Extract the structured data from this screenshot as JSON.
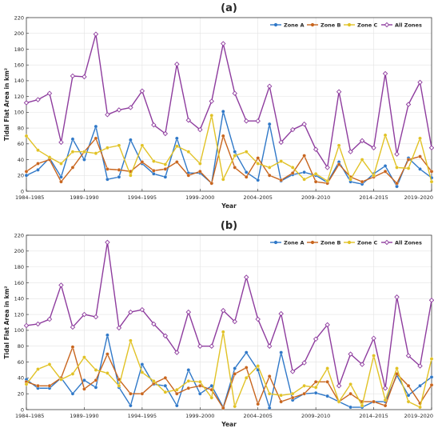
{
  "figure": {
    "colors": {
      "zone_a": "#2F78C8",
      "zone_b": "#C8651E",
      "zone_c": "#E1C225",
      "all_zones": "#8E3C9E"
    }
  },
  "chart_data": [
    {
      "type": "line",
      "title": "(a)",
      "xlabel": "Year",
      "ylabel": "Tidal Flat Area in km²",
      "ylim": [
        0,
        220
      ],
      "yticks": [
        0,
        20,
        40,
        60,
        80,
        100,
        120,
        140,
        160,
        180,
        200,
        220
      ],
      "xticks": [
        "1984–1985",
        "1989–1990",
        "1994–1995",
        "1999–2000",
        "2004–2005",
        "2009–2010",
        "2014–2015",
        "2019–2020"
      ],
      "x": [
        "1984–1985",
        "1985–1986",
        "1986–1987",
        "1987–1988",
        "1988–1989",
        "1989–1990",
        "1990–1991",
        "1991–1992",
        "1992–1993",
        "1993–1994",
        "1994–1995",
        "1995–1996",
        "1996–1997",
        "1997–1998",
        "1998–1999",
        "1999–2000",
        "2000–2001",
        "2001–2002",
        "2002–2003",
        "2003–2004",
        "2004–2005",
        "2005–2006",
        "2006–2007",
        "2007–2008",
        "2008–2009",
        "2009–2010",
        "2010–2011",
        "2011–2012",
        "2012–2013",
        "2013–2014",
        "2014–2015",
        "2015–2016",
        "2016–2017",
        "2017–2018",
        "2018–2019",
        "2019–2020"
      ],
      "grid": true,
      "legend_position": "top-right",
      "series": [
        {
          "name": "Zone A",
          "color": "#2F78C8",
          "values": [
            20,
            27,
            42,
            18,
            66,
            40,
            82,
            15,
            18,
            65,
            35,
            22,
            18,
            67,
            23,
            23,
            10,
            101,
            50,
            24,
            14,
            85,
            13,
            21,
            24,
            20,
            11,
            37,
            12,
            9,
            22,
            32,
            6,
            42,
            28,
            17
          ]
        },
        {
          "name": "Zone B",
          "color": "#C8651E",
          "values": [
            25,
            35,
            40,
            12,
            30,
            50,
            67,
            28,
            27,
            25,
            37,
            26,
            28,
            37,
            20,
            25,
            10,
            70,
            30,
            18,
            42,
            20,
            14,
            23,
            45,
            12,
            10,
            34,
            18,
            12,
            18,
            25,
            10,
            40,
            44,
            25
          ]
        },
        {
          "name": "Zone C",
          "color": "#E1C225",
          "values": [
            70,
            52,
            43,
            35,
            50,
            50,
            48,
            55,
            58,
            20,
            58,
            38,
            34,
            57,
            50,
            35,
            96,
            15,
            45,
            50,
            35,
            30,
            38,
            30,
            15,
            22,
            13,
            58,
            15,
            40,
            20,
            71,
            30,
            29,
            67,
            12
          ]
        },
        {
          "name": "All Zones",
          "color": "#8E3C9E",
          "values": [
            112,
            116,
            124,
            62,
            146,
            145,
            199,
            97,
            103,
            106,
            127,
            84,
            73,
            161,
            90,
            78,
            114,
            187,
            124,
            89,
            89,
            133,
            62,
            78,
            85,
            53,
            30,
            126,
            50,
            64,
            55,
            149,
            47,
            110,
            138,
            55
          ]
        }
      ]
    },
    {
      "type": "line",
      "title": "(b)",
      "xlabel": "Year",
      "ylabel": "Tidal Flat Area in km²",
      "ylim": [
        0,
        220
      ],
      "yticks": [
        0,
        20,
        40,
        60,
        80,
        100,
        120,
        140,
        160,
        180,
        200,
        220
      ],
      "xticks": [
        "1984–1985",
        "1989–1990",
        "1994–1995",
        "1999–2000",
        "2004–2005",
        "2009–2010",
        "2014–2015",
        "2019–2020"
      ],
      "x": [
        "1984–1985",
        "1985–1986",
        "1986–1987",
        "1987–1988",
        "1988–1989",
        "1989–1990",
        "1990–1991",
        "1991–1992",
        "1992–1993",
        "1993–1994",
        "1994–1995",
        "1995–1996",
        "1996–1997",
        "1997–1998",
        "1998–1999",
        "1999–2000",
        "2000–2001",
        "2001–2002",
        "2002–2003",
        "2003–2004",
        "2004–2005",
        "2005–2006",
        "2006–2007",
        "2007–2008",
        "2008–2009",
        "2009–2010",
        "2010–2011",
        "2011–2012",
        "2012–2013",
        "2013–2014",
        "2014–2015",
        "2015–2016",
        "2016–2017",
        "2017–2018",
        "2018–2019",
        "2019–2020"
      ],
      "grid": true,
      "legend_position": "top-right",
      "series": [
        {
          "name": "Zone A",
          "color": "#2F78C8",
          "values": [
            38,
            27,
            27,
            40,
            20,
            37,
            28,
            94,
            28,
            5,
            57,
            32,
            30,
            5,
            50,
            20,
            30,
            3,
            52,
            72,
            50,
            2,
            72,
            12,
            20,
            21,
            17,
            10,
            3,
            3,
            10,
            10,
            43,
            18,
            30,
            41
          ]
        },
        {
          "name": "Zone B",
          "color": "#C8651E",
          "values": [
            35,
            30,
            30,
            40,
            79,
            26,
            37,
            70,
            38,
            20,
            20,
            33,
            40,
            20,
            27,
            30,
            25,
            2,
            45,
            53,
            7,
            42,
            10,
            15,
            20,
            35,
            35,
            10,
            20,
            10,
            10,
            5,
            45,
            30,
            8,
            31
          ]
        },
        {
          "name": "Zone C",
          "color": "#E1C225",
          "values": [
            32,
            51,
            57,
            38,
            45,
            66,
            50,
            46,
            30,
            87,
            47,
            36,
            22,
            25,
            36,
            35,
            15,
            98,
            4,
            40,
            55,
            20,
            18,
            20,
            30,
            28,
            52,
            10,
            32,
            5,
            68,
            12,
            52,
            10,
            3,
            64
          ]
        },
        {
          "name": "All Zones",
          "color": "#8E3C9E",
          "values": [
            106,
            108,
            114,
            157,
            104,
            120,
            117,
            211,
            103,
            123,
            126,
            108,
            93,
            72,
            123,
            80,
            80,
            125,
            111,
            167,
            114,
            80,
            121,
            48,
            59,
            89,
            107,
            30,
            70,
            57,
            90,
            27,
            142,
            68,
            55,
            138
          ]
        }
      ]
    }
  ]
}
